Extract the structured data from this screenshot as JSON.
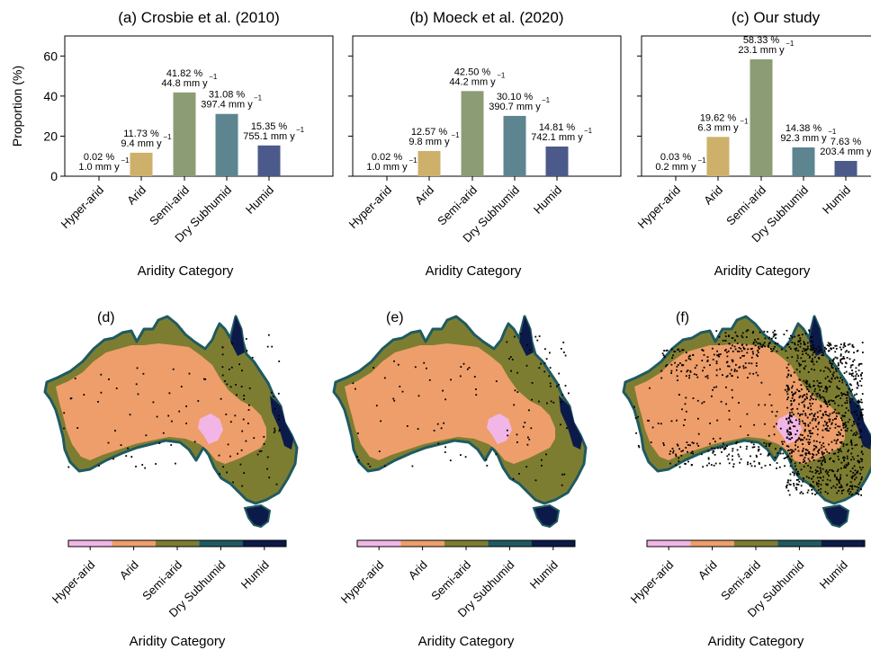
{
  "colors": {
    "Hyper-arid": "#f2b6e6",
    "Arid": "#ee9e6b",
    "Semi-arid": "#7d7d32",
    "Dry Subhumid": "#1f5a60",
    "Humid": "#0c1a4a",
    "bars": [
      "#5a6d2f",
      "#cdb16a",
      "#8c9d76",
      "#5c8590",
      "#4b5a8a"
    ],
    "points": "#000000"
  },
  "chart_data": [
    {
      "type": "bar",
      "title": "(a) Crosbie et al. (2010)",
      "categories": [
        "Hyper-arid",
        "Arid",
        "Semi-arid",
        "Dry Subhumid",
        "Humid"
      ],
      "values": [
        0.02,
        11.73,
        41.82,
        31.08,
        15.35
      ],
      "pct_labels": [
        "0.02 %",
        "11.73 %",
        "41.82 %",
        "31.08 %",
        "15.35 %"
      ],
      "rate_labels": [
        "1.0 mm y",
        "9.4 mm y",
        "44.8 mm y",
        "397.4 mm y",
        "755.1 mm y"
      ],
      "exponent": "−1",
      "ylabel": "Proportion (%)",
      "xlabel": "Aridity Category",
      "ylim": [
        0,
        70
      ],
      "yticks": [
        0,
        20,
        40,
        60
      ],
      "grid": false
    },
    {
      "type": "bar",
      "title": "(b) Moeck et al. (2020)",
      "categories": [
        "Hyper-arid",
        "Arid",
        "Semi-arid",
        "Dry Subhumid",
        "Humid"
      ],
      "values": [
        0.02,
        12.57,
        42.5,
        30.1,
        14.81
      ],
      "pct_labels": [
        "0.02 %",
        "12.57 %",
        "42.50 %",
        "30.10 %",
        "14.81 %"
      ],
      "rate_labels": [
        "1.0 mm y",
        "9.8 mm y",
        "44.2 mm y",
        "390.7 mm y",
        "742.1 mm y"
      ],
      "exponent": "−1",
      "ylabel": "",
      "xlabel": "Aridity Category",
      "ylim": [
        0,
        70
      ],
      "yticks": [
        0,
        20,
        40,
        60
      ],
      "grid": false
    },
    {
      "type": "bar",
      "title": "(c) Our study",
      "categories": [
        "Hyper-arid",
        "Arid",
        "Semi-arid",
        "Dry Subhumid",
        "Humid"
      ],
      "values": [
        0.03,
        19.62,
        58.33,
        14.38,
        7.63
      ],
      "pct_labels": [
        "0.03 %",
        "19.62 %",
        "58.33 %",
        "14.38 %",
        "7.63 %"
      ],
      "rate_labels": [
        "0.2 mm y",
        "6.3 mm y",
        "23.1 mm y",
        "92.3 mm y",
        "203.4 mm y"
      ],
      "exponent": "−1",
      "ylabel": "",
      "xlabel": "Aridity Category",
      "ylim": [
        0,
        70
      ],
      "yticks": [
        0,
        20,
        40,
        60
      ],
      "grid": false
    }
  ],
  "maps": [
    {
      "label": "(d)",
      "point_density": "low"
    },
    {
      "label": "(e)",
      "point_density": "low"
    },
    {
      "label": "(f)",
      "point_density": "high"
    }
  ],
  "colorbar": {
    "categories": [
      "Hyper-arid",
      "Arid",
      "Semi-arid",
      "Dry Subhumid",
      "Humid"
    ],
    "xlabel": "Aridity Category"
  }
}
